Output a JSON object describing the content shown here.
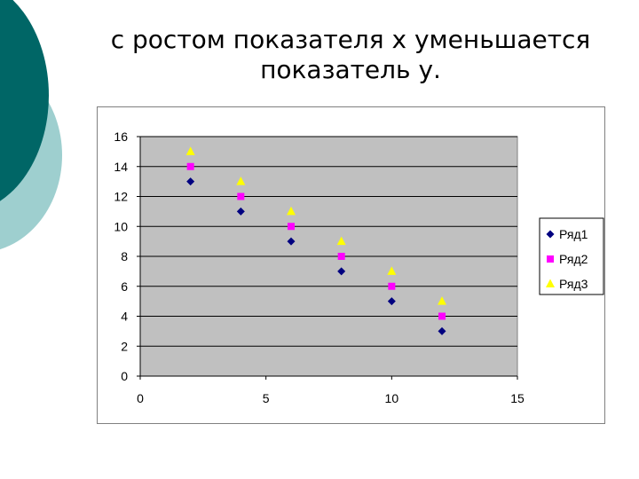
{
  "slide": {
    "title_lines": [
      "с ростом показателя х уменьшается",
      "показатель у."
    ]
  },
  "chart_data": {
    "type": "scatter",
    "x": [
      2,
      4,
      6,
      8,
      10,
      12
    ],
    "series": [
      {
        "name": "Ряд1",
        "values": [
          13,
          11,
          9,
          7,
          5,
          3
        ],
        "color": "#000080",
        "marker": "diamond"
      },
      {
        "name": "Ряд2",
        "values": [
          14,
          12,
          10,
          8,
          6,
          4
        ],
        "color": "#ff00ff",
        "marker": "square"
      },
      {
        "name": "Ряд3",
        "values": [
          15,
          13,
          11,
          9,
          7,
          5
        ],
        "color": "#ffff00",
        "marker": "triangle"
      }
    ],
    "xlim": [
      0,
      15
    ],
    "ylim": [
      0,
      16
    ],
    "xticks": [
      0,
      5,
      10,
      15
    ],
    "yticks": [
      0,
      2,
      4,
      6,
      8,
      10,
      12,
      14,
      16
    ],
    "grid": true,
    "legend": "right",
    "plot_background": "#c0c0c0",
    "gridline_color": "#000000"
  }
}
